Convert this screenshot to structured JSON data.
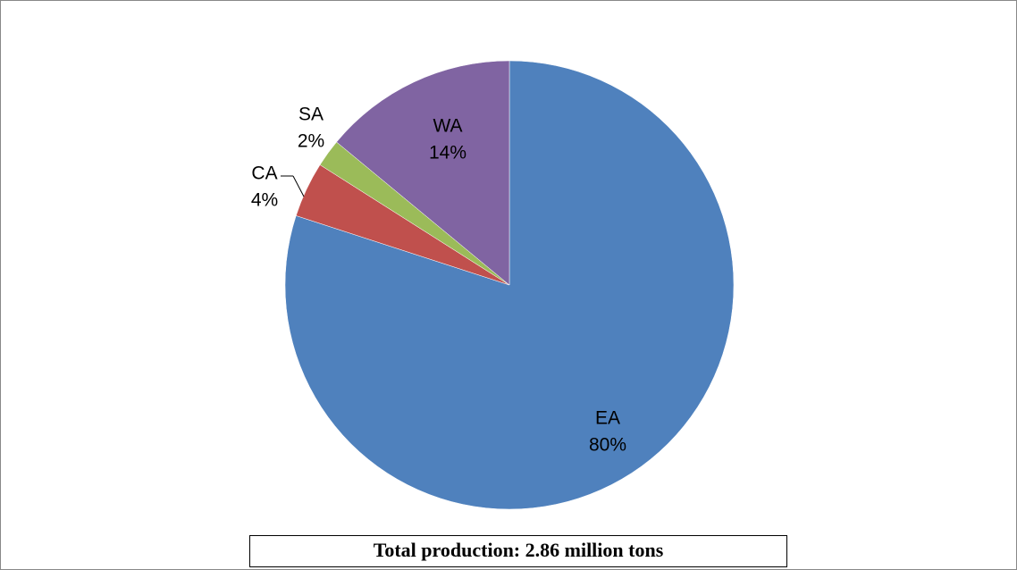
{
  "chart_data": {
    "type": "pie",
    "categories": [
      "EA",
      "CA",
      "SA",
      "WA"
    ],
    "values": [
      80,
      4,
      2,
      14
    ],
    "value_labels": [
      "80%",
      "4%",
      "2%",
      "14%"
    ],
    "colors": [
      "#4f81bd",
      "#c0504d",
      "#9bbb59",
      "#8064a2"
    ],
    "annotation": "Total production: 2.86 million tons"
  }
}
